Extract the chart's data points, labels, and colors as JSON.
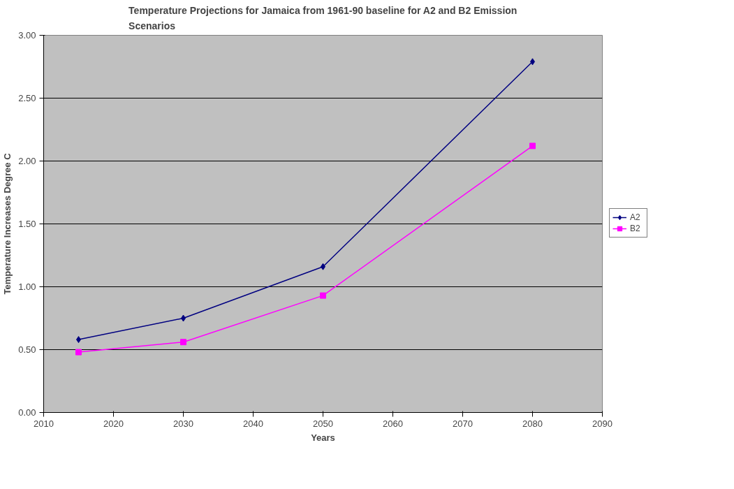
{
  "chart_data": {
    "type": "line",
    "title": "Temperature Projections for Jamaica from 1961-90 baseline for A2 and B2 Emission\nScenarios",
    "xlabel": "Years",
    "ylabel": "Temperature Increases Degree C",
    "x": [
      2015,
      2030,
      2050,
      2080
    ],
    "series": [
      {
        "name": "A2",
        "color": "#000080",
        "marker": "diamond",
        "values": [
          0.58,
          0.75,
          1.16,
          2.79
        ]
      },
      {
        "name": "B2",
        "color": "#ff00ff",
        "marker": "square",
        "values": [
          0.48,
          0.56,
          0.93,
          2.12
        ]
      }
    ],
    "xlim": [
      2010,
      2090
    ],
    "xticks": [
      2010,
      2020,
      2030,
      2040,
      2050,
      2060,
      2070,
      2080,
      2090
    ],
    "ylim": [
      0,
      3
    ],
    "yticks": [
      {
        "value": 0,
        "label": "0.00"
      },
      {
        "value": 0.5,
        "label": "0.50"
      },
      {
        "value": 1,
        "label": "1.00"
      },
      {
        "value": 1.5,
        "label": "1.50"
      },
      {
        "value": 2,
        "label": "2.00"
      },
      {
        "value": 2.5,
        "label": "2.50"
      },
      {
        "value": 3,
        "label": "3.00"
      }
    ],
    "grid": "y",
    "legend": "right",
    "line_style": "solid"
  }
}
